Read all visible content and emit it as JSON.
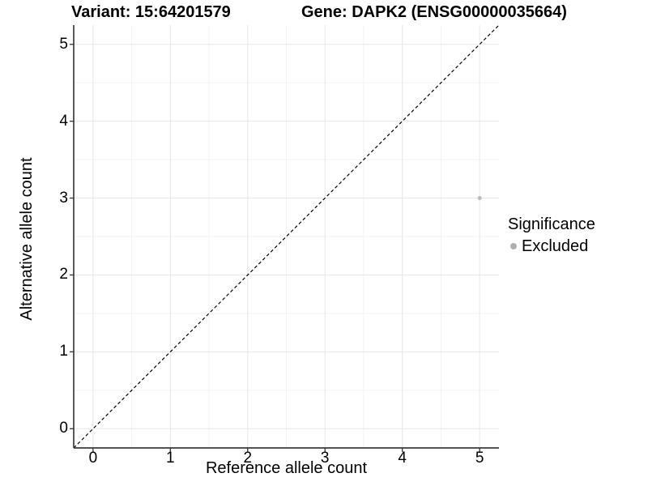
{
  "chart_data": {
    "type": "scatter",
    "titles": {
      "left": "Variant: 15:64201579",
      "right": "Gene: DAPK2 (ENSG00000035664)"
    },
    "xlabel": "Reference allele count",
    "ylabel": "Alternative allele count",
    "xlim": [
      -0.25,
      5.25
    ],
    "ylim": [
      -0.25,
      5.25
    ],
    "xticks": [
      0,
      1,
      2,
      3,
      4,
      5
    ],
    "yticks": [
      0,
      1,
      2,
      3,
      4,
      5
    ],
    "minor_ticks": [
      0.5,
      1.5,
      2.5,
      3.5,
      4.5
    ],
    "grid": "major+minor",
    "identity_line": {
      "slope": 1,
      "intercept": 0,
      "style": "dashed",
      "color": "#000000"
    },
    "points": [
      {
        "x": 5,
        "y": 3,
        "significance": "Excluded",
        "color": "#bcbcbc",
        "radius": 2.5
      }
    ],
    "legend": {
      "title": "Significance",
      "position": "right",
      "items": [
        {
          "label": "Excluded",
          "color": "#b0b0b0"
        }
      ]
    },
    "colors": {
      "background": "#ffffff",
      "grid_major": "#e6e6e6",
      "grid_minor": "#f2f2f2",
      "axis_line": "#3c3c3c",
      "tick_mark": "#333333",
      "text": "#000000"
    }
  }
}
